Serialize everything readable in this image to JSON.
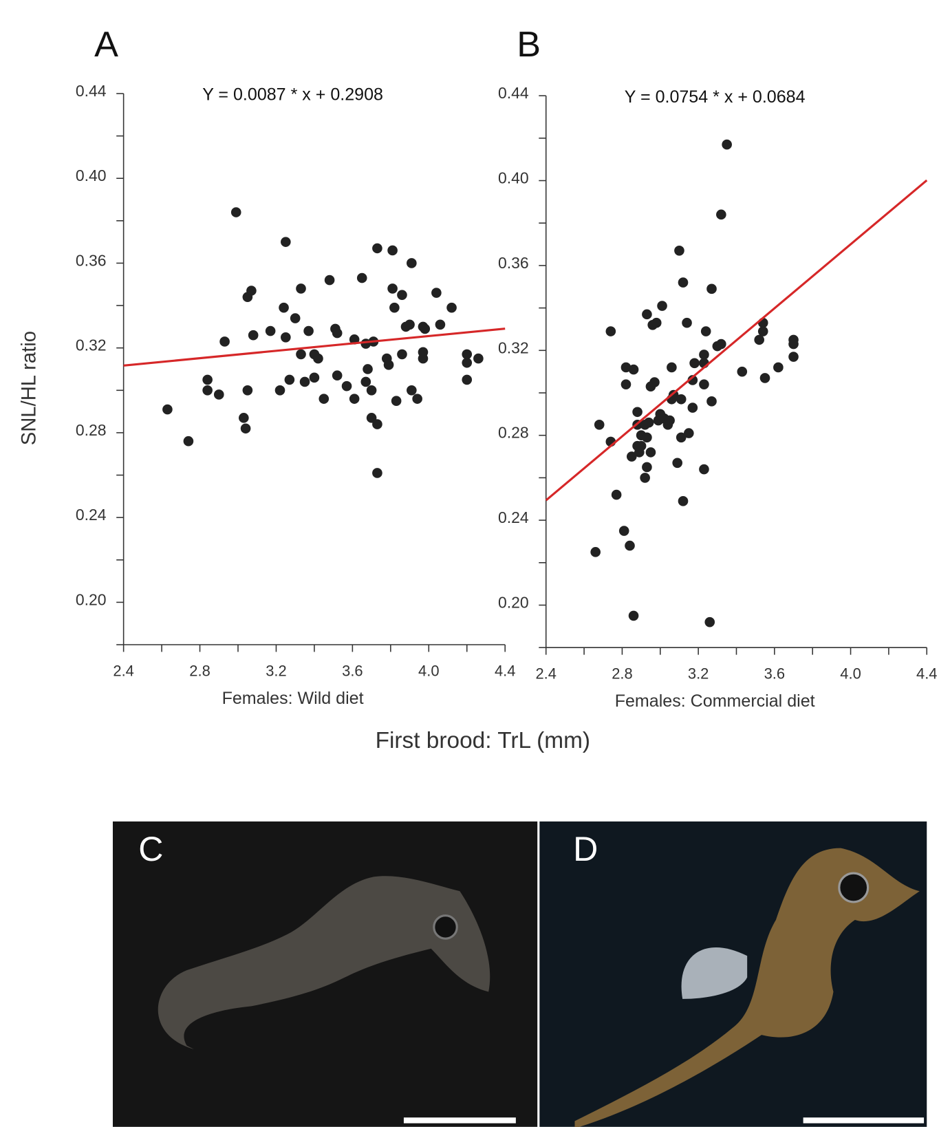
{
  "chart_data": [
    {
      "type": "scatter",
      "panel_label": "A",
      "equation": "Y = 0.0087 * x + 0.2908",
      "fit": {
        "slope": 0.0087,
        "intercept": 0.2908
      },
      "xlabel": "Females: Wild diet",
      "ylabel": "SNL/HL ratio",
      "color": "#222222",
      "line_color": "#d62728",
      "xlim": [
        2.4,
        4.4
      ],
      "ylim": [
        0.18,
        0.44
      ],
      "xticks": [
        2.4,
        2.8,
        3.2,
        3.6,
        {
          "value": 4,
          "label": "4.0"
        },
        4.4
      ],
      "xminor_ticks": [
        2.6,
        3.0,
        3.4,
        3.8,
        4.2
      ],
      "yticks": [
        {
          "value": 0.2,
          "label": "0.20"
        },
        0.24,
        0.28,
        0.32,
        0.36,
        {
          "value": 0.4,
          "label": "0.40"
        },
        0.44
      ],
      "yminor_ticks": [
        0.18,
        0.22,
        0.26,
        0.3,
        0.34,
        0.38,
        0.42
      ],
      "x": [
        2.63,
        2.74,
        2.84,
        2.84,
        2.9,
        2.93,
        2.99,
        3.03,
        3.04,
        3.05,
        3.05,
        3.07,
        3.08,
        3.17,
        3.22,
        3.24,
        3.25,
        3.25,
        3.27,
        3.3,
        3.33,
        3.33,
        3.35,
        3.37,
        3.4,
        3.4,
        3.42,
        3.45,
        3.48,
        3.51,
        3.52,
        3.52,
        3.57,
        3.61,
        3.61,
        3.65,
        3.67,
        3.67,
        3.68,
        3.7,
        3.7,
        3.73,
        3.73,
        3.73,
        3.78,
        3.79,
        3.81,
        3.81,
        3.82,
        3.83,
        3.86,
        3.86,
        3.88,
        3.9,
        3.91,
        3.91,
        3.94,
        3.97,
        3.97,
        3.97,
        3.98,
        4.04,
        4.06,
        4.12,
        4.2,
        4.2,
        4.2,
        4.26,
        3.71
      ],
      "values": [
        0.291,
        0.276,
        0.305,
        0.3,
        0.298,
        0.323,
        0.384,
        0.287,
        0.282,
        0.3,
        0.344,
        0.347,
        0.326,
        0.328,
        0.3,
        0.339,
        0.37,
        0.325,
        0.305,
        0.334,
        0.348,
        0.317,
        0.304,
        0.328,
        0.306,
        0.317,
        0.315,
        0.296,
        0.352,
        0.329,
        0.327,
        0.307,
        0.302,
        0.296,
        0.324,
        0.353,
        0.322,
        0.304,
        0.31,
        0.3,
        0.287,
        0.284,
        0.261,
        0.367,
        0.315,
        0.312,
        0.366,
        0.348,
        0.339,
        0.295,
        0.317,
        0.345,
        0.33,
        0.331,
        0.36,
        0.3,
        0.296,
        0.33,
        0.318,
        0.315,
        0.329,
        0.346,
        0.331,
        0.339,
        0.317,
        0.313,
        0.305,
        0.315,
        0.323
      ]
    },
    {
      "type": "scatter",
      "panel_label": "B",
      "equation": "Y = 0.0754 * x + 0.0684",
      "fit": {
        "slope": 0.0754,
        "intercept": 0.0684
      },
      "xlabel": "Females: Commercial diet",
      "color": "#222222",
      "line_color": "#d62728",
      "xlim": [
        2.4,
        4.4
      ],
      "ylim": [
        0.18,
        0.44
      ],
      "xticks": [
        2.4,
        2.8,
        3.2,
        3.6,
        {
          "value": 4,
          "label": "4.0"
        },
        4.4
      ],
      "xminor_ticks": [
        2.6,
        3.0,
        3.4,
        3.8,
        4.2
      ],
      "yticks": [
        {
          "value": 0.2,
          "label": "0.20"
        },
        0.24,
        0.28,
        0.32,
        0.36,
        {
          "value": 0.4,
          "label": "0.40"
        },
        0.44
      ],
      "yminor_ticks": [
        0.18,
        0.22,
        0.26,
        0.3,
        0.34,
        0.38,
        0.42
      ],
      "x": [
        2.66,
        2.68,
        2.74,
        2.74,
        2.77,
        2.81,
        2.82,
        2.82,
        2.84,
        2.85,
        2.86,
        2.86,
        2.88,
        2.88,
        2.88,
        2.89,
        2.9,
        2.9,
        2.92,
        2.92,
        2.93,
        2.93,
        2.93,
        2.94,
        2.95,
        2.95,
        2.96,
        2.97,
        2.98,
        2.99,
        3.0,
        3.01,
        3.02,
        3.04,
        3.05,
        3.06,
        3.06,
        3.09,
        3.1,
        3.11,
        3.11,
        3.12,
        3.12,
        3.14,
        3.15,
        3.17,
        3.17,
        3.18,
        3.23,
        3.23,
        3.23,
        3.24,
        3.26,
        3.27,
        3.27,
        3.3,
        3.32,
        3.32,
        3.35,
        3.43,
        3.52,
        3.54,
        3.54,
        3.55,
        3.62,
        3.7,
        3.7,
        3.7,
        3.07,
        3.23
      ],
      "values": [
        0.225,
        0.285,
        0.329,
        0.277,
        0.252,
        0.235,
        0.304,
        0.312,
        0.228,
        0.27,
        0.311,
        0.195,
        0.285,
        0.275,
        0.291,
        0.272,
        0.275,
        0.28,
        0.285,
        0.26,
        0.337,
        0.265,
        0.279,
        0.286,
        0.303,
        0.272,
        0.332,
        0.305,
        0.333,
        0.287,
        0.29,
        0.341,
        0.288,
        0.285,
        0.287,
        0.312,
        0.297,
        0.267,
        0.367,
        0.297,
        0.279,
        0.249,
        0.352,
        0.333,
        0.281,
        0.293,
        0.306,
        0.314,
        0.264,
        0.304,
        0.314,
        0.329,
        0.192,
        0.296,
        0.349,
        0.322,
        0.323,
        0.384,
        0.417,
        0.31,
        0.325,
        0.333,
        0.329,
        0.307,
        0.312,
        0.325,
        0.323,
        0.317,
        0.299,
        0.318
      ]
    }
  ],
  "figure": {
    "xlabel": "First brood: TrL (mm)",
    "panels": [
      {
        "label": "C"
      },
      {
        "label": "D"
      }
    ]
  }
}
